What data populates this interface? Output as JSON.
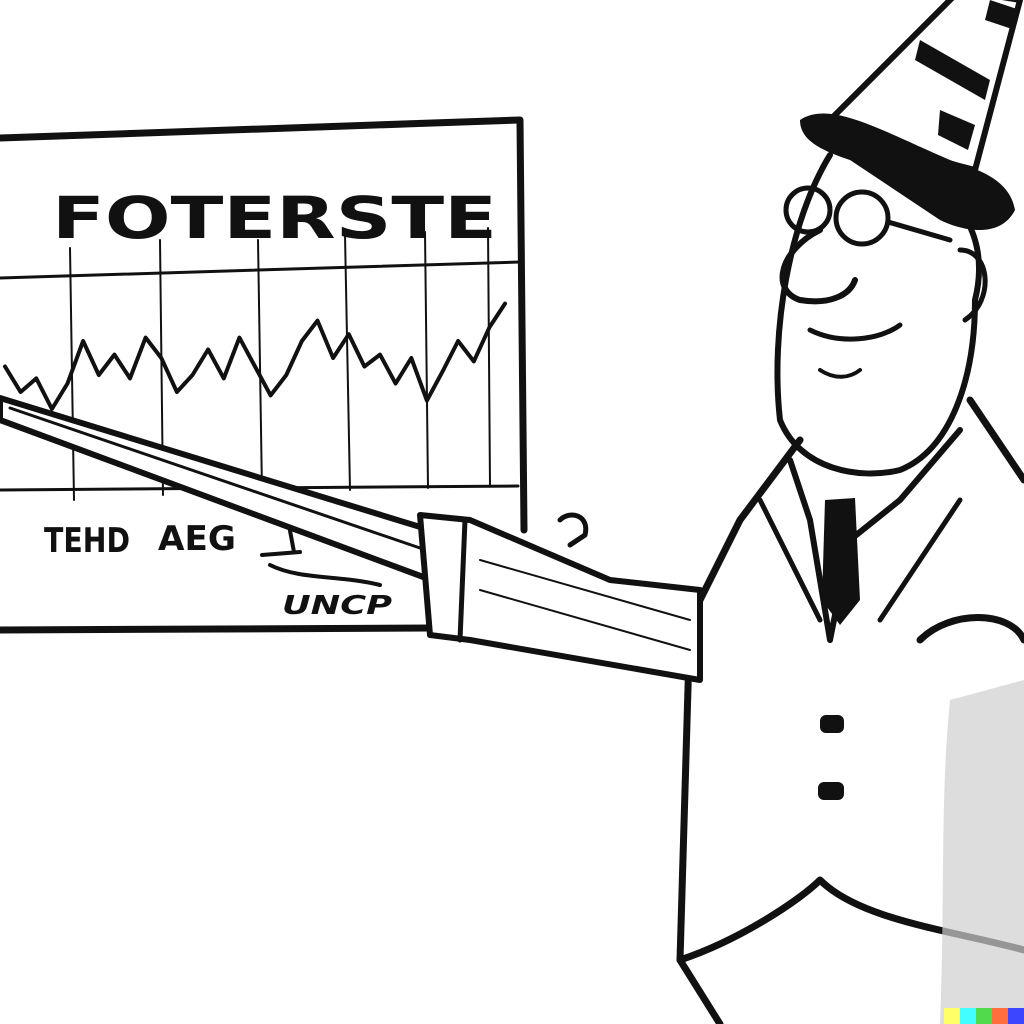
{
  "board": {
    "title": "FOTERSTE",
    "label_left": "TEHD",
    "label_mid": "AEG",
    "label_lower": "UNCP"
  },
  "chart_data": {
    "type": "line",
    "title": "FOTERSTE",
    "xlabel": "",
    "ylabel": "",
    "grid": true,
    "series": [
      {
        "values": [
          55,
          40,
          48,
          30,
          45,
          70,
          50,
          62,
          48,
          72,
          60,
          40,
          50,
          65,
          48,
          72,
          55,
          38,
          50,
          70,
          82,
          60,
          74,
          55,
          62,
          45,
          60,
          35,
          52,
          70,
          58,
          78,
          92
        ]
      }
    ],
    "ylim": [
      0,
      100
    ]
  },
  "colors": {
    "ink": "#111111",
    "paper": "#ffffff"
  },
  "icons": [
    "pointer-stick",
    "party-hat",
    "eyeglasses"
  ],
  "watermark_colors": [
    "#ffff66",
    "#42ffff",
    "#51da4c",
    "#ff6e3c",
    "#3c46ff"
  ]
}
